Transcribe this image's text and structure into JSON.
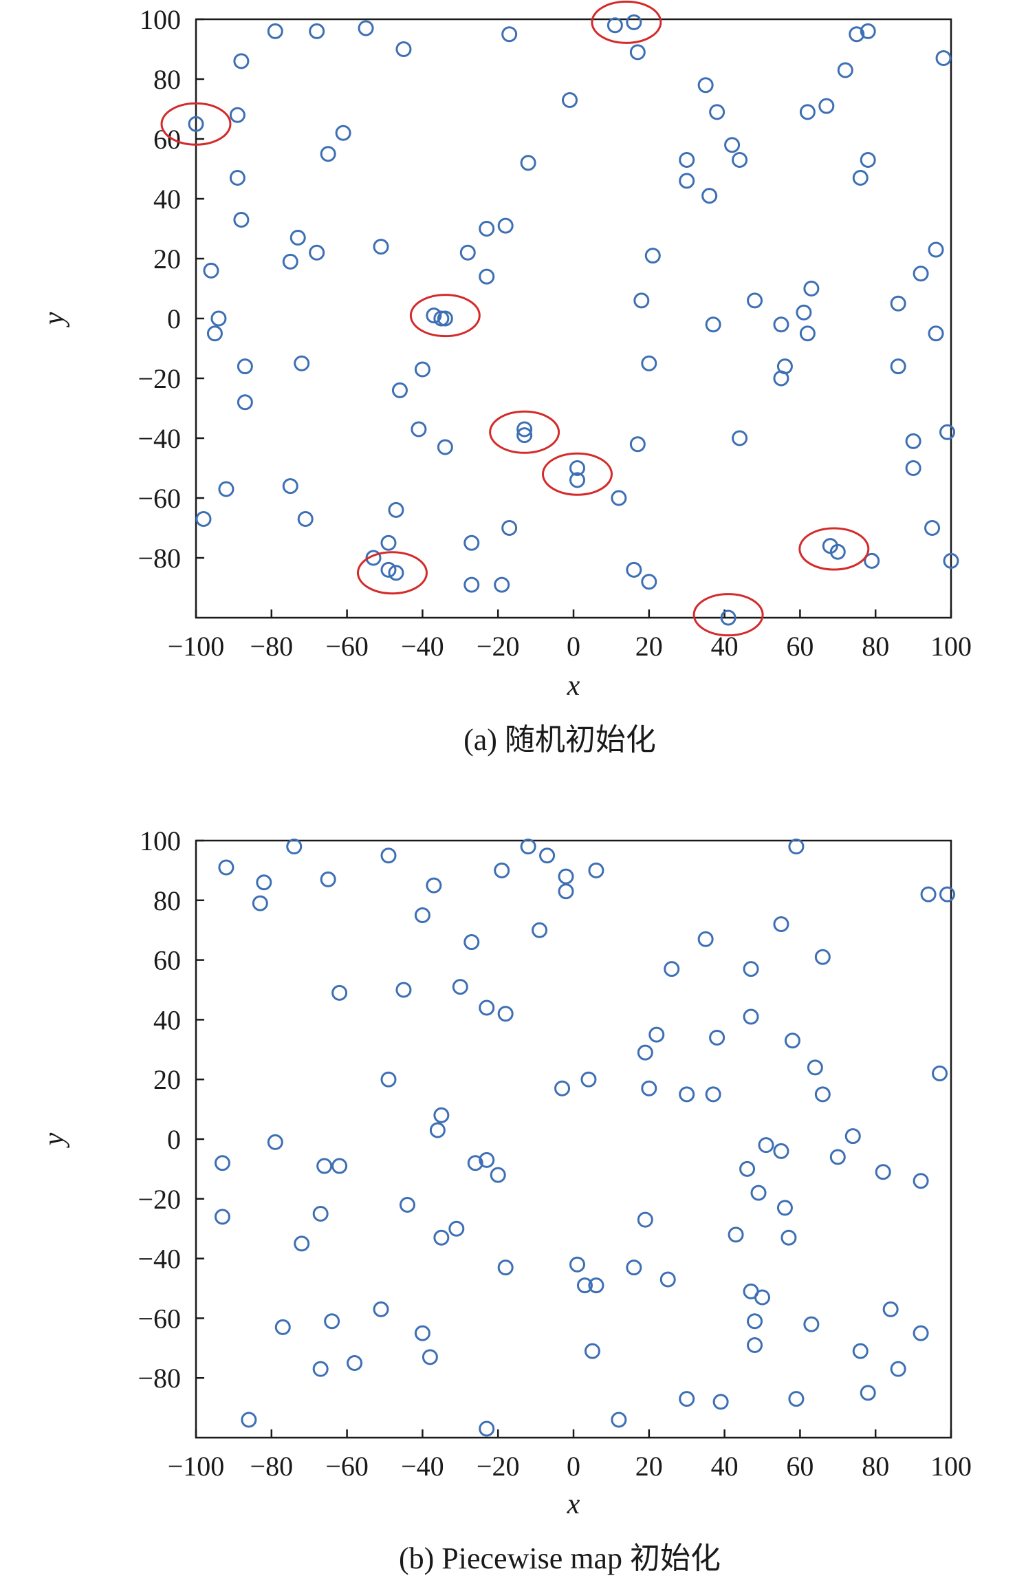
{
  "colors": {
    "point": "#3d6fb4",
    "highlight": "#d42a2a",
    "axis": "#1a1a1a"
  },
  "chart_data": [
    {
      "type": "scatter",
      "caption": "(a) 随机初始化",
      "xlabel": "x",
      "ylabel": "y",
      "xlim": [
        -100,
        100
      ],
      "ylim": [
        -100,
        100
      ],
      "xticks": [
        -100,
        -80,
        -60,
        -40,
        -20,
        0,
        20,
        40,
        60,
        80,
        100
      ],
      "yticks": [
        -80,
        -60,
        -40,
        -20,
        0,
        20,
        40,
        60,
        80,
        100
      ],
      "grid": false,
      "points": [
        [
          -79,
          96
        ],
        [
          -68,
          96
        ],
        [
          -55,
          97
        ],
        [
          -45,
          90
        ],
        [
          -17,
          95
        ],
        [
          11,
          98
        ],
        [
          16,
          99
        ],
        [
          17,
          89
        ],
        [
          -88,
          86
        ],
        [
          -89,
          68
        ],
        [
          -100,
          65
        ],
        [
          -89,
          47
        ],
        [
          -88,
          33
        ],
        [
          -61,
          62
        ],
        [
          -65,
          55
        ],
        [
          -1,
          73
        ],
        [
          -12,
          52
        ],
        [
          35,
          78
        ],
        [
          38,
          69
        ],
        [
          42,
          58
        ],
        [
          44,
          53
        ],
        [
          30,
          53
        ],
        [
          30,
          46
        ],
        [
          36,
          41
        ],
        [
          62,
          69
        ],
        [
          67,
          71
        ],
        [
          72,
          83
        ],
        [
          75,
          95
        ],
        [
          78,
          96
        ],
        [
          98,
          87
        ],
        [
          78,
          53
        ],
        [
          76,
          47
        ],
        [
          -96,
          16
        ],
        [
          -73,
          27
        ],
        [
          -75,
          19
        ],
        [
          -68,
          22
        ],
        [
          -51,
          24
        ],
        [
          -28,
          22
        ],
        [
          -23,
          30
        ],
        [
          -18,
          31
        ],
        [
          -23,
          14
        ],
        [
          21,
          21
        ],
        [
          18,
          6
        ],
        [
          48,
          6
        ],
        [
          63,
          10
        ],
        [
          61,
          2
        ],
        [
          86,
          5
        ],
        [
          92,
          15
        ],
        [
          96,
          23
        ],
        [
          -94,
          0
        ],
        [
          -95,
          -5
        ],
        [
          -37,
          1
        ],
        [
          -35,
          0
        ],
        [
          -34,
          0
        ],
        [
          37,
          -2
        ],
        [
          55,
          -2
        ],
        [
          62,
          -5
        ],
        [
          96,
          -5
        ],
        [
          -87,
          -16
        ],
        [
          -72,
          -15
        ],
        [
          -40,
          -17
        ],
        [
          -46,
          -24
        ],
        [
          20,
          -15
        ],
        [
          56,
          -16
        ],
        [
          55,
          -20
        ],
        [
          86,
          -16
        ],
        [
          -87,
          -28
        ],
        [
          -41,
          -37
        ],
        [
          -34,
          -43
        ],
        [
          -13,
          -37
        ],
        [
          -13,
          -39
        ],
        [
          17,
          -42
        ],
        [
          44,
          -40
        ],
        [
          90,
          -41
        ],
        [
          99,
          -38
        ],
        [
          -92,
          -57
        ],
        [
          -75,
          -56
        ],
        [
          -71,
          -67
        ],
        [
          -47,
          -64
        ],
        [
          -98,
          -67
        ],
        [
          1,
          -50
        ],
        [
          1,
          -54
        ],
        [
          12,
          -60
        ],
        [
          90,
          -50
        ],
        [
          -17,
          -70
        ],
        [
          -27,
          -75
        ],
        [
          -49,
          -75
        ],
        [
          -53,
          -80
        ],
        [
          -49,
          -84
        ],
        [
          -47,
          -85
        ],
        [
          -27,
          -89
        ],
        [
          -19,
          -89
        ],
        [
          16,
          -84
        ],
        [
          20,
          -88
        ],
        [
          68,
          -76
        ],
        [
          70,
          -78
        ],
        [
          79,
          -81
        ],
        [
          95,
          -70
        ],
        [
          100,
          -81
        ],
        [
          41,
          -100
        ]
      ],
      "highlights": [
        [
          -100,
          65
        ],
        [
          14,
          99
        ],
        [
          -34,
          1
        ],
        [
          -13,
          -38
        ],
        [
          1,
          -52
        ],
        [
          -48,
          -85
        ],
        [
          41,
          -99
        ],
        [
          69,
          -77
        ]
      ]
    },
    {
      "type": "scatter",
      "caption": "(b) Piecewise map 初始化",
      "xlabel": "x",
      "ylabel": "y",
      "xlim": [
        -100,
        100
      ],
      "ylim": [
        -100,
        100
      ],
      "xticks": [
        -100,
        -80,
        -60,
        -40,
        -20,
        0,
        20,
        40,
        60,
        80,
        100
      ],
      "yticks": [
        -80,
        -60,
        -40,
        -20,
        0,
        20,
        40,
        60,
        80,
        100
      ],
      "grid": false,
      "points": [
        [
          -92,
          91
        ],
        [
          -82,
          86
        ],
        [
          -83,
          79
        ],
        [
          -74,
          98
        ],
        [
          -65,
          87
        ],
        [
          -49,
          95
        ],
        [
          -37,
          85
        ],
        [
          -40,
          75
        ],
        [
          -12,
          98
        ],
        [
          -7,
          95
        ],
        [
          -19,
          90
        ],
        [
          -2,
          88
        ],
        [
          -2,
          83
        ],
        [
          6,
          90
        ],
        [
          59,
          98
        ],
        [
          94,
          82
        ],
        [
          99,
          82
        ],
        [
          -27,
          66
        ],
        [
          -9,
          70
        ],
        [
          -62,
          49
        ],
        [
          -45,
          50
        ],
        [
          -30,
          51
        ],
        [
          -23,
          44
        ],
        [
          -18,
          42
        ],
        [
          35,
          67
        ],
        [
          26,
          57
        ],
        [
          47,
          57
        ],
        [
          47,
          41
        ],
        [
          66,
          61
        ],
        [
          55,
          72
        ],
        [
          22,
          35
        ],
        [
          38,
          34
        ],
        [
          19,
          29
        ],
        [
          58,
          33
        ],
        [
          -49,
          20
        ],
        [
          -3,
          17
        ],
        [
          4,
          20
        ],
        [
          20,
          17
        ],
        [
          30,
          15
        ],
        [
          37,
          15
        ],
        [
          64,
          24
        ],
        [
          66,
          15
        ],
        [
          97,
          22
        ],
        [
          -35,
          8
        ],
        [
          -36,
          3
        ],
        [
          -93,
          -8
        ],
        [
          -79,
          -1
        ],
        [
          -66,
          -9
        ],
        [
          -62,
          -9
        ],
        [
          -26,
          -8
        ],
        [
          -23,
          -7
        ],
        [
          -20,
          -12
        ],
        [
          51,
          -2
        ],
        [
          55,
          -4
        ],
        [
          74,
          1
        ],
        [
          70,
          -6
        ],
        [
          46,
          -10
        ],
        [
          49,
          -18
        ],
        [
          56,
          -23
        ],
        [
          82,
          -11
        ],
        [
          92,
          -14
        ],
        [
          -93,
          -26
        ],
        [
          -67,
          -25
        ],
        [
          -72,
          -35
        ],
        [
          -44,
          -22
        ],
        [
          -35,
          -33
        ],
        [
          -31,
          -30
        ],
        [
          19,
          -27
        ],
        [
          43,
          -32
        ],
        [
          57,
          -33
        ],
        [
          -18,
          -43
        ],
        [
          1,
          -42
        ],
        [
          3,
          -49
        ],
        [
          6,
          -49
        ],
        [
          16,
          -43
        ],
        [
          25,
          -47
        ],
        [
          47,
          -51
        ],
        [
          50,
          -53
        ],
        [
          48,
          -61
        ],
        [
          48,
          -69
        ],
        [
          -77,
          -63
        ],
        [
          -64,
          -61
        ],
        [
          -51,
          -57
        ],
        [
          -40,
          -65
        ],
        [
          -38,
          -73
        ],
        [
          -67,
          -77
        ],
        [
          -58,
          -75
        ],
        [
          5,
          -71
        ],
        [
          63,
          -62
        ],
        [
          76,
          -71
        ],
        [
          84,
          -57
        ],
        [
          92,
          -65
        ],
        [
          -86,
          -94
        ],
        [
          -23,
          -97
        ],
        [
          12,
          -94
        ],
        [
          30,
          -87
        ],
        [
          39,
          -88
        ],
        [
          59,
          -87
        ],
        [
          78,
          -85
        ],
        [
          86,
          -77
        ]
      ],
      "highlights": []
    }
  ]
}
